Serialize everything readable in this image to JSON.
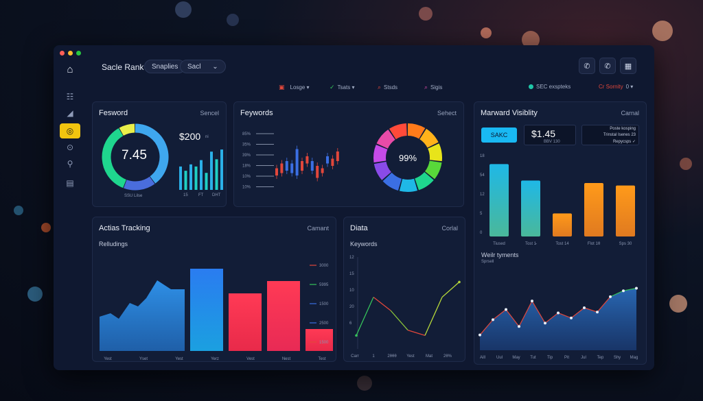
{
  "header": {
    "app_title": "Sacle Rank",
    "pill_1": "Snaplies",
    "pill_2": "Sacl",
    "pill_2_caret": "⌄"
  },
  "filters": {
    "items": [
      {
        "label": "Losge ▾",
        "color": "#e2473b"
      },
      {
        "label": "Tsats ▾",
        "color": "#36c45b"
      },
      {
        "label": "Stsds",
        "color": "#e2473b"
      },
      {
        "label": "Sigis",
        "color": "#d94aa7"
      }
    ],
    "status": "SEC exspteks",
    "status_color": "#1fc6a7",
    "right_label": "Cr Sornity",
    "right_value": "0 ▾"
  },
  "cards": {
    "feswold": {
      "title": "Fesword",
      "action": "Sencel",
      "ring_value": "7.45",
      "money": "$200",
      "money_suffix": "ni",
      "ring_caption": "SSU Lilse",
      "bar_labels": [
        "15",
        "FT",
        "DHT"
      ],
      "bars": [
        0.55,
        0.45,
        0.6,
        0.55,
        0.7,
        0.4,
        0.9,
        0.72,
        0.95
      ],
      "ring_segments": [
        {
          "value": 0.4,
          "color": "#3fa7ee"
        },
        {
          "value": 0.16,
          "color": "#4a6ddc"
        },
        {
          "value": 0.36,
          "color": "#1fd68e"
        },
        {
          "value": 0.08,
          "color": "#e9ef4a"
        }
      ]
    },
    "keywords": {
      "title": "Feywords",
      "action": "Sehect",
      "axis": [
        "85%",
        "35%",
        "39%",
        "18%",
        "10%",
        "10%"
      ],
      "donut_value": "99%",
      "candles": [
        {
          "o": 0.3,
          "c": 0.45,
          "color": "#e2473b"
        },
        {
          "o": 0.55,
          "c": 0.35,
          "color": "#e2473b"
        },
        {
          "o": 0.4,
          "c": 0.6,
          "color": "#3b6fe3"
        },
        {
          "o": 0.35,
          "c": 0.55,
          "color": "#3b6fe3"
        },
        {
          "o": 0.3,
          "c": 0.85,
          "color": "#3b6fe3"
        },
        {
          "o": 0.6,
          "c": 0.4,
          "color": "#e2473b"
        },
        {
          "o": 0.7,
          "c": 0.55,
          "color": "#e2473b"
        },
        {
          "o": 0.4,
          "c": 0.6,
          "color": "#3b6fe3"
        },
        {
          "o": 0.25,
          "c": 0.5,
          "color": "#e2473b"
        },
        {
          "o": 0.35,
          "c": 0.45,
          "color": "#e2473b"
        },
        {
          "o": 0.55,
          "c": 0.7,
          "color": "#3b6fe3"
        },
        {
          "o": 0.5,
          "c": 0.65,
          "color": "#e2473b"
        },
        {
          "o": 0.6,
          "c": 0.8,
          "color": "#e2473b"
        }
      ]
    },
    "visibility": {
      "title": "Marward Visiblity",
      "action": "Carnal",
      "button": "SAKC",
      "price": "$1.45",
      "price_sub": "BBV 130",
      "info_lines": [
        "Poste kosping",
        "Trinstal Isenes 23",
        "Repycsps ✓"
      ],
      "axis": [
        "18",
        "54",
        "12",
        "5",
        "0"
      ],
      "bars": [
        {
          "label": "Tiused",
          "value": 0.88
        },
        {
          "label": "Tost 1̵",
          "value": 0.68
        },
        {
          "label": "Tost 14",
          "value": 0.28
        },
        {
          "label": "Flot 1θ",
          "value": 0.65
        },
        {
          "label": "Sps 30",
          "value": 0.62
        }
      ]
    },
    "tracking": {
      "title": "Actias Tracking",
      "action": "Camant",
      "subtitle": "Relludings",
      "legend": [
        {
          "label": "3000",
          "color": "#e2473b"
        },
        {
          "label": "5995",
          "color": "#36c45b"
        },
        {
          "label": "1500",
          "color": "#3b6fe3"
        },
        {
          "label": "2500",
          "color": "#3b6fe3"
        },
        {
          "label": "1500",
          "color": "#e2473b"
        }
      ],
      "xlabels": [
        "Yest",
        "Yset",
        "Yest",
        "Yerz",
        "Vest",
        "Nest",
        "Test"
      ]
    },
    "data": {
      "title": "Diata",
      "action": "Corlal",
      "subtitle": "Keywords",
      "axis": [
        "12",
        "15",
        "10",
        "20",
        "6"
      ],
      "xlabels": [
        "Carr",
        "1",
        "2θθθ",
        "Yest",
        "Mat",
        "2θ%"
      ],
      "line": [
        0.12,
        0.55,
        0.4,
        0.18,
        0.12,
        0.55,
        0.72
      ]
    },
    "payments": {
      "title": "Weilr tyments",
      "subtitle": "Sprsell",
      "xlabels": [
        "Aill",
        "Uul",
        "May",
        "Tut",
        "Tip",
        "Pit",
        "Jul",
        "Tep",
        "Shy",
        "Mag"
      ],
      "points": [
        0.18,
        0.36,
        0.48,
        0.28,
        0.58,
        0.32,
        0.44,
        0.38,
        0.5,
        0.45,
        0.63,
        0.7,
        0.73
      ]
    }
  }
}
